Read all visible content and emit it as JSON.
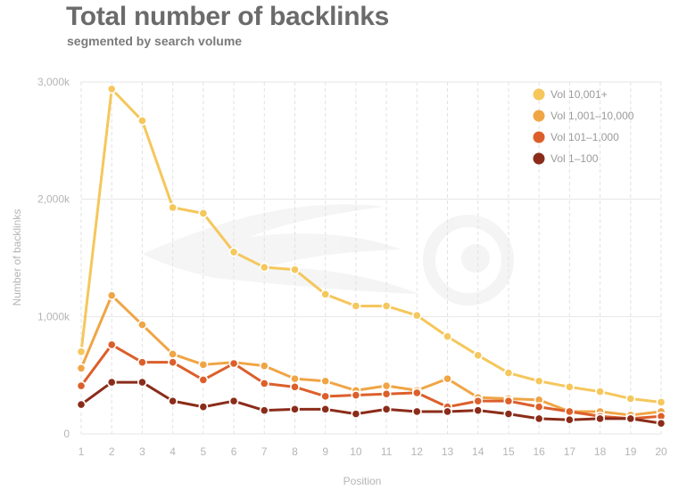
{
  "header": {
    "title": "Total number of backlinks",
    "subtitle": "segmented by search volume"
  },
  "chart_data": {
    "type": "line",
    "title": "Total number of backlinks",
    "subtitle": "segmented by search volume",
    "xlabel": "Position",
    "ylabel": "Number of backlinks",
    "x": [
      1,
      2,
      3,
      4,
      5,
      6,
      7,
      8,
      9,
      10,
      11,
      12,
      13,
      14,
      15,
      16,
      17,
      18,
      19,
      20
    ],
    "ylim": [
      0,
      3000
    ],
    "y_ticks": [
      0,
      1000,
      2000,
      3000
    ],
    "y_tick_labels": [
      "0",
      "1,000k",
      "2,000k",
      "3,000k"
    ],
    "grid": "vertical dashed, horizontal solid",
    "legend_position": "top-right",
    "series": [
      {
        "name": "Vol 10,001+",
        "color": "#f5c75c",
        "values": [
          700,
          2940,
          2670,
          1930,
          1880,
          1550,
          1420,
          1400,
          1190,
          1090,
          1090,
          1010,
          830,
          670,
          520,
          450,
          400,
          360,
          300,
          270
        ]
      },
      {
        "name": "Vol 1,001–10,000",
        "color": "#f0a545",
        "values": [
          560,
          1180,
          930,
          680,
          590,
          610,
          580,
          470,
          450,
          370,
          410,
          370,
          470,
          310,
          300,
          290,
          190,
          190,
          160,
          190
        ]
      },
      {
        "name": "Vol 101–1,000",
        "color": "#dc5f2b",
        "values": [
          410,
          760,
          610,
          610,
          460,
          600,
          430,
          400,
          320,
          330,
          340,
          350,
          230,
          280,
          280,
          230,
          190,
          150,
          130,
          150
        ]
      },
      {
        "name": "Vol 1–100",
        "color": "#8b2c1a",
        "values": [
          250,
          440,
          440,
          280,
          230,
          280,
          200,
          210,
          210,
          170,
          210,
          190,
          190,
          200,
          170,
          130,
          120,
          130,
          130,
          90
        ]
      }
    ]
  }
}
